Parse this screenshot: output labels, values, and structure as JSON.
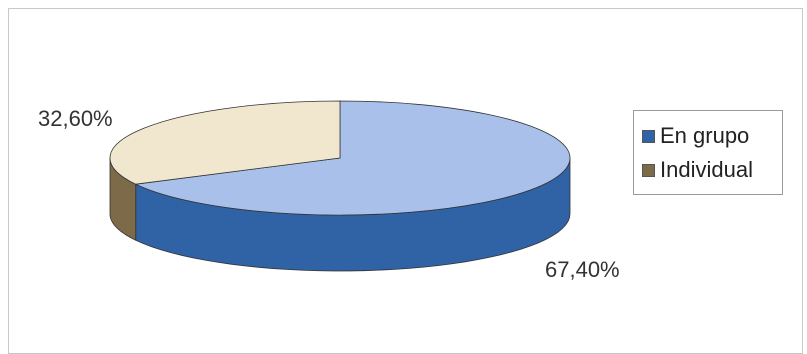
{
  "chart_data": {
    "type": "pie",
    "categories": [
      "En grupo",
      "Individual"
    ],
    "values": [
      67.4,
      32.6
    ],
    "data_labels": [
      "67,40%",
      "32,60%"
    ],
    "colors": {
      "En grupo": {
        "top": "#a9c1ea",
        "side": "#2f63a5"
      },
      "Individual": {
        "top": "#f1e7cf",
        "side": "#7d6a48"
      }
    },
    "legend_position": "right",
    "three_d": true
  }
}
